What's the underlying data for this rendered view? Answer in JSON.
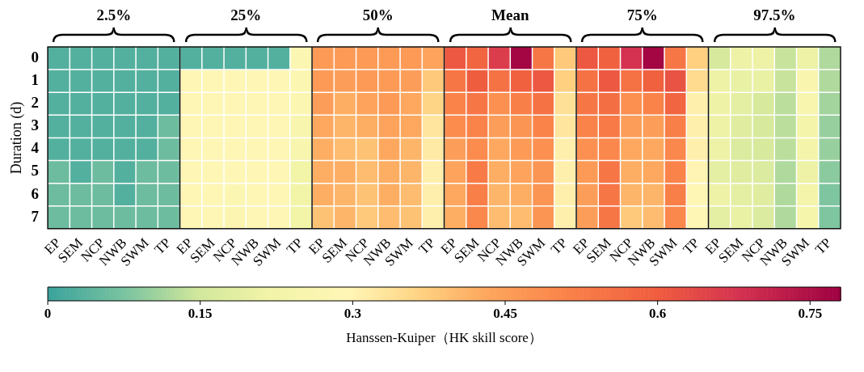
{
  "chart_data": {
    "type": "heatmap",
    "ylabel": "Duration (d)",
    "clabel": "Hanssen-Kuiper（HK skill score）",
    "annotations": [
      "2.5%",
      "25%",
      "50%",
      "Mean",
      "75%",
      "97.5%"
    ],
    "categories": [
      "EP",
      "SEM",
      "NCP",
      "NWB",
      "SWM",
      "TP",
      "EP",
      "SEM",
      "NCP",
      "NWB",
      "SWM",
      "TP",
      "EP",
      "SEM",
      "NCP",
      "NWB",
      "SWM",
      "TP",
      "EP",
      "SEM",
      "NCP",
      "NWB",
      "SWM",
      "TP",
      "EP",
      "SEM",
      "NCP",
      "NWB",
      "SWM",
      "TP",
      "EP",
      "SEM",
      "NCP",
      "NWB",
      "SWM",
      "TP"
    ],
    "y_categories": [
      "0",
      "1",
      "2",
      "3",
      "4",
      "5",
      "6",
      "7"
    ],
    "cells": [
      [
        0.03,
        0.03,
        0.03,
        0.03,
        0.03,
        0.03,
        0.03,
        0.03,
        0.03,
        0.03,
        0.03,
        0.28,
        0.46,
        0.46,
        0.46,
        0.46,
        0.46,
        0.44,
        0.61,
        0.58,
        0.66,
        0.77,
        0.54,
        0.38,
        0.61,
        0.59,
        0.68,
        0.77,
        0.54,
        0.37,
        0.16,
        0.21,
        0.21,
        0.14,
        0.21,
        0.12
      ],
      [
        0.03,
        0.03,
        0.03,
        0.03,
        0.03,
        0.03,
        0.29,
        0.29,
        0.29,
        0.29,
        0.29,
        0.28,
        0.46,
        0.45,
        0.46,
        0.46,
        0.45,
        0.38,
        0.54,
        0.6,
        0.55,
        0.59,
        0.61,
        0.37,
        0.55,
        0.61,
        0.55,
        0.59,
        0.62,
        0.35,
        0.21,
        0.2,
        0.2,
        0.14,
        0.26,
        0.12
      ],
      [
        0.03,
        0.03,
        0.03,
        0.03,
        0.03,
        0.03,
        0.29,
        0.29,
        0.29,
        0.29,
        0.29,
        0.28,
        0.45,
        0.42,
        0.44,
        0.46,
        0.43,
        0.36,
        0.51,
        0.54,
        0.48,
        0.52,
        0.55,
        0.34,
        0.54,
        0.56,
        0.48,
        0.51,
        0.58,
        0.31,
        0.21,
        0.19,
        0.16,
        0.13,
        0.25,
        0.11
      ],
      [
        0.03,
        0.03,
        0.03,
        0.03,
        0.03,
        0.06,
        0.29,
        0.29,
        0.29,
        0.29,
        0.29,
        0.25,
        0.43,
        0.41,
        0.42,
        0.44,
        0.43,
        0.33,
        0.49,
        0.51,
        0.45,
        0.47,
        0.51,
        0.33,
        0.51,
        0.53,
        0.45,
        0.45,
        0.52,
        0.31,
        0.21,
        0.18,
        0.16,
        0.13,
        0.23,
        0.1
      ],
      [
        0.03,
        0.03,
        0.03,
        0.03,
        0.03,
        0.06,
        0.29,
        0.29,
        0.29,
        0.29,
        0.29,
        0.25,
        0.42,
        0.4,
        0.39,
        0.43,
        0.41,
        0.32,
        0.45,
        0.49,
        0.43,
        0.46,
        0.48,
        0.31,
        0.48,
        0.5,
        0.43,
        0.43,
        0.5,
        0.31,
        0.21,
        0.17,
        0.16,
        0.13,
        0.23,
        0.1
      ],
      [
        0.06,
        0.03,
        0.06,
        0.03,
        0.06,
        0.06,
        0.29,
        0.29,
        0.29,
        0.29,
        0.29,
        0.22,
        0.42,
        0.42,
        0.4,
        0.42,
        0.41,
        0.31,
        0.44,
        0.53,
        0.42,
        0.44,
        0.47,
        0.31,
        0.46,
        0.54,
        0.42,
        0.43,
        0.51,
        0.3,
        0.19,
        0.18,
        0.17,
        0.12,
        0.21,
        0.09
      ],
      [
        0.06,
        0.06,
        0.06,
        0.03,
        0.06,
        0.06,
        0.29,
        0.29,
        0.28,
        0.29,
        0.29,
        0.22,
        0.42,
        0.41,
        0.39,
        0.42,
        0.4,
        0.31,
        0.43,
        0.52,
        0.41,
        0.42,
        0.47,
        0.31,
        0.45,
        0.54,
        0.41,
        0.41,
        0.52,
        0.29,
        0.21,
        0.19,
        0.18,
        0.12,
        0.23,
        0.08
      ],
      [
        0.06,
        0.06,
        0.06,
        0.06,
        0.06,
        0.06,
        0.29,
        0.29,
        0.27,
        0.29,
        0.29,
        0.22,
        0.39,
        0.41,
        0.38,
        0.4,
        0.39,
        0.31,
        0.42,
        0.5,
        0.4,
        0.4,
        0.47,
        0.31,
        0.45,
        0.54,
        0.38,
        0.4,
        0.5,
        0.29,
        0.19,
        0.2,
        0.17,
        0.12,
        0.24,
        0.08
      ]
    ],
    "clim": [
      0,
      0.78
    ],
    "cticks": [
      0,
      0.15,
      0.3,
      0.45,
      0.6,
      0.75
    ]
  }
}
